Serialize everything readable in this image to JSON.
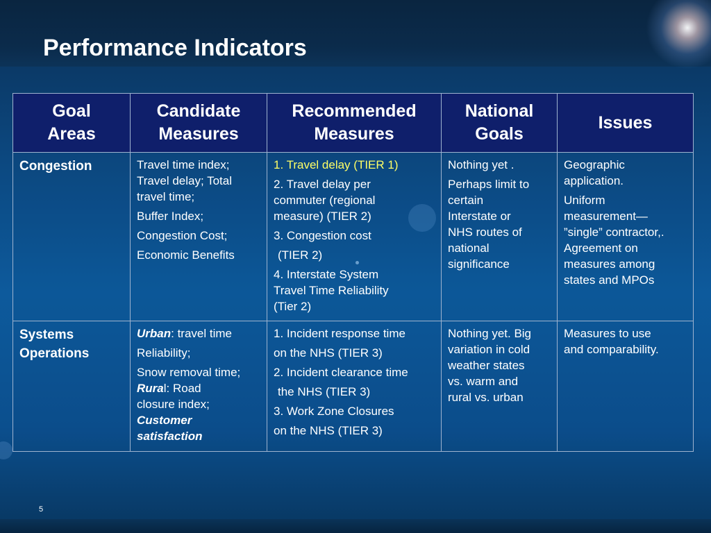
{
  "slide": {
    "title": "Performance Indicators",
    "page_number": "5"
  },
  "table": {
    "headers": [
      {
        "line1": "Goal",
        "line2": "Areas"
      },
      {
        "line1": "Candidate",
        "line2": "Measures"
      },
      {
        "line1": "Recommended",
        "line2": "Measures"
      },
      {
        "line1": "National",
        "line2": "Goals"
      },
      {
        "line1": "Issues",
        "line2": ""
      }
    ],
    "rows": [
      {
        "goal_area": "Congestion",
        "candidate": {
          "l1": "Travel time index;",
          "l2": "Travel delay; Total",
          "l3": "travel time;",
          "l4": "Buffer Index;",
          "l5": "Congestion Cost;",
          "l6": "Economic Benefits"
        },
        "recommended": {
          "l1": "1. Travel delay (TIER 1)",
          "l2": "2. Travel delay per",
          "l3": "commuter (regional",
          "l4": "measure) (TIER 2)",
          "l5": "3. Congestion cost",
          "l6": "(TIER 2)",
          "l7": "4. Interstate System",
          "l8": "Travel Time Reliability",
          "l9": "(Tier 2)"
        },
        "national": {
          "l1": "Nothing yet .",
          "l2": "Perhaps limit to",
          "l3": "certain",
          "l4": "Interstate or",
          "l5": "NHS routes of",
          "l6": "national",
          "l7": "significance"
        },
        "issues": {
          "l1": "Geographic",
          "l2": "application.",
          "l3": "Uniform",
          "l4": "measurement—",
          "l5": "”single” contractor,.",
          "l6": "Agreement on",
          "l7": "measures among",
          "l8": "states and MPOs"
        }
      },
      {
        "goal_area": {
          "l1": "Systems",
          "l2": "Operations"
        },
        "candidate": {
          "urban_label": "Urban",
          "urban_rest": ": travel time",
          "l2": "Reliability;",
          "l3": "Snow removal time;",
          "rural_label": "Rura",
          "rural_rest": "l: Road",
          "l5": "closure index;",
          "l6": "Customer",
          "l7": "satisfaction"
        },
        "recommended": {
          "l1": "1. Incident response time",
          "l2": "on the NHS (TIER 3)",
          "l3": "2. Incident clearance time",
          "l4": "the NHS (TIER 3)",
          "l5": "3. Work Zone Closures",
          "l6": "on the NHS (TIER 3)"
        },
        "national": {
          "l1": "Nothing yet. Big",
          "l2": "variation in cold",
          "l3": "weather states",
          "l4": "vs. warm and",
          "l5": "rural vs. urban"
        },
        "issues": {
          "l1": "Measures to use",
          "l2": "and comparability."
        }
      }
    ]
  },
  "colors": {
    "header_bg": "#0f1f6b",
    "highlight_text": "#ffff66",
    "cell_border": "#9fb3cf"
  }
}
